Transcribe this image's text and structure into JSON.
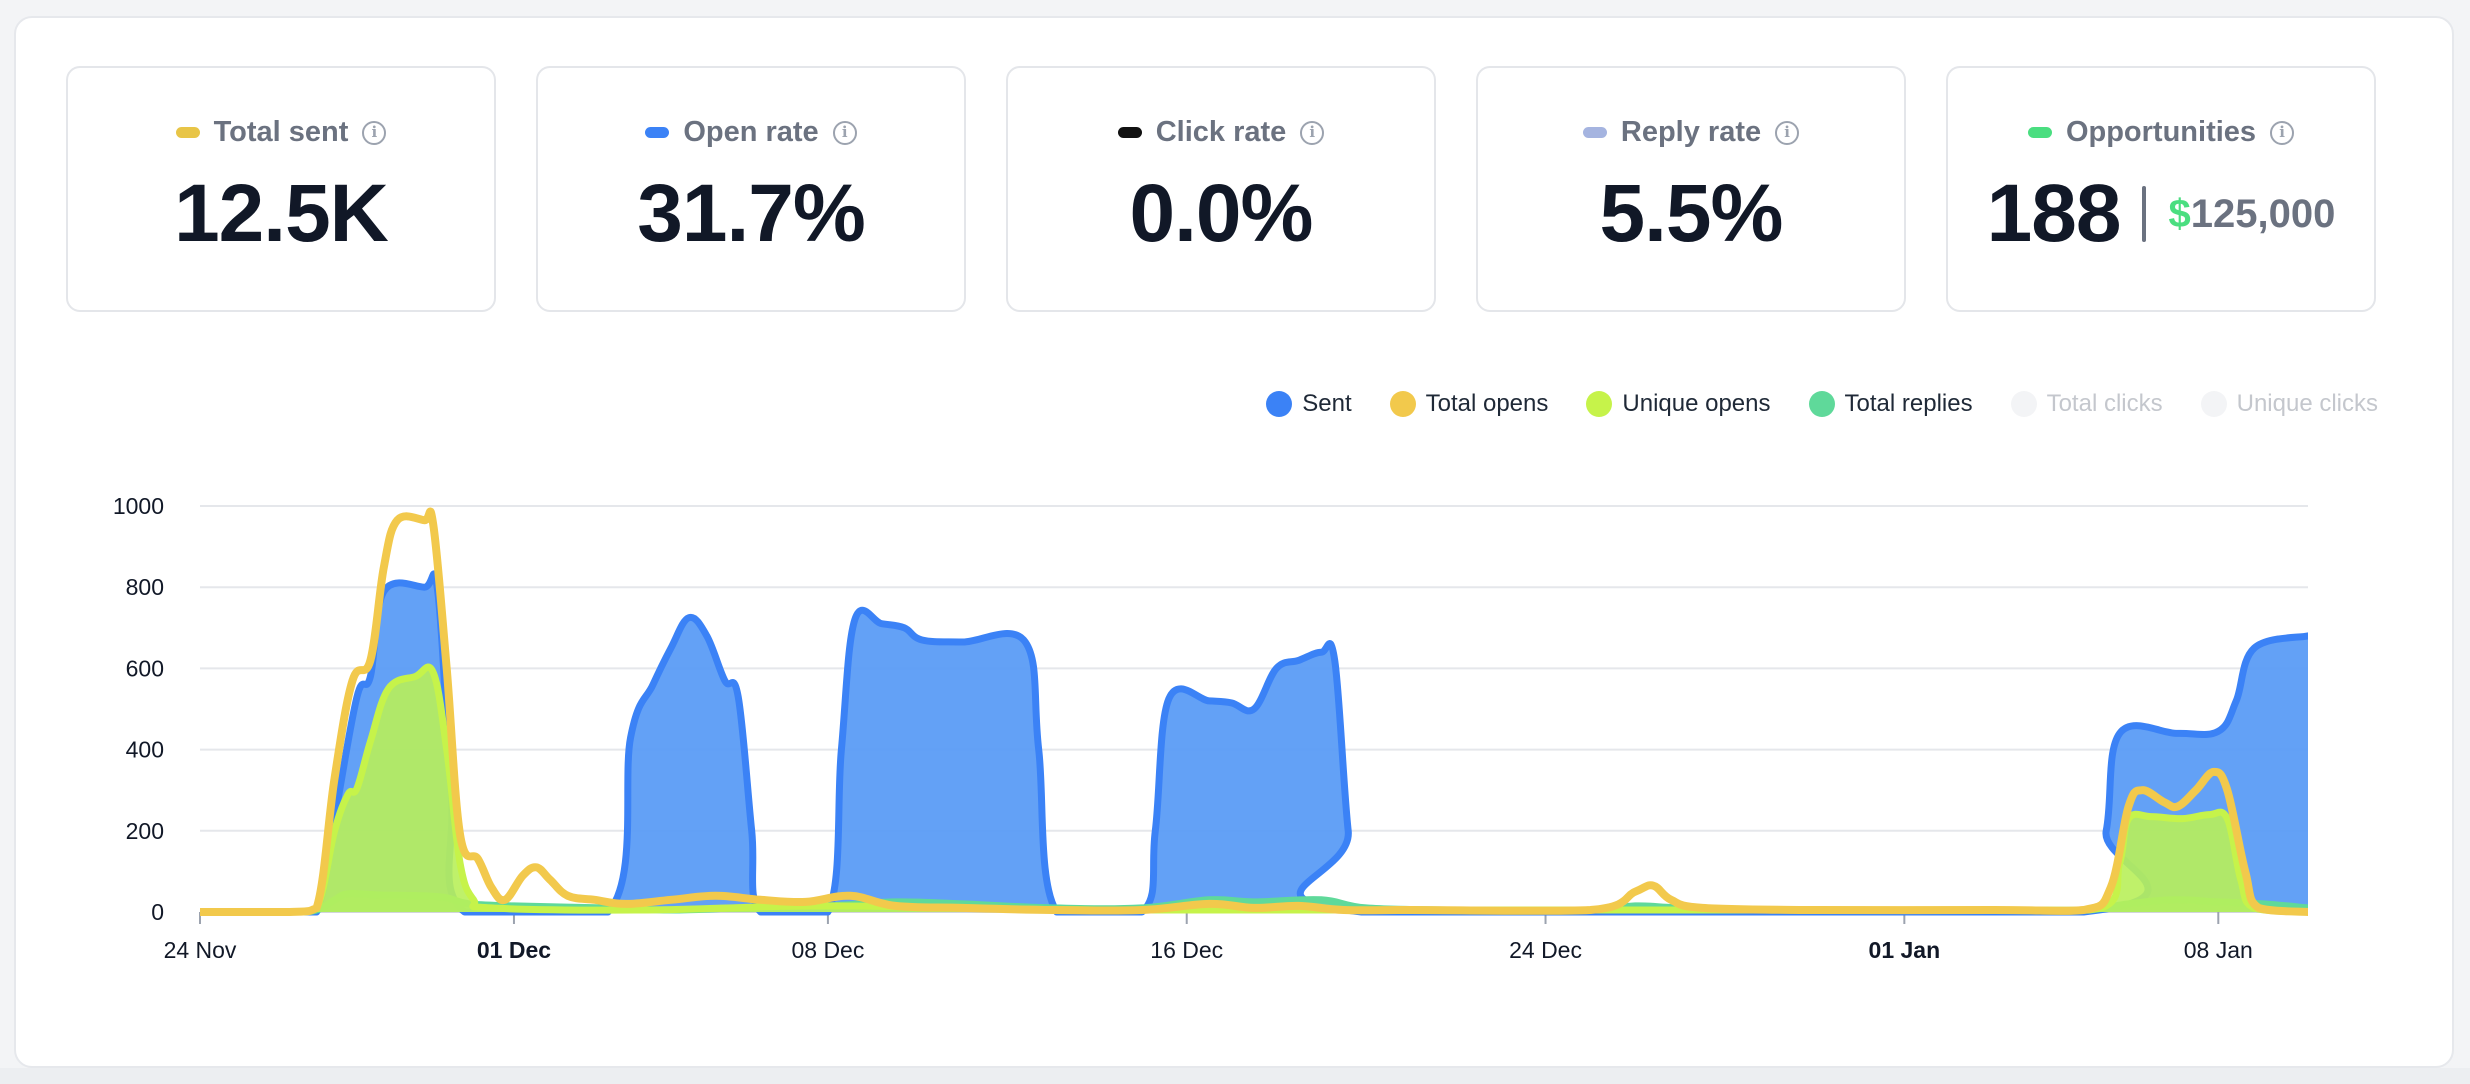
{
  "stats": [
    {
      "label": "Total sent",
      "value": "12.5K",
      "color": "#e8c547"
    },
    {
      "label": "Open rate",
      "value": "31.7%",
      "color": "#3b82f6"
    },
    {
      "label": "Click rate",
      "value": "0.0%",
      "color": "#111111"
    },
    {
      "label": "Reply rate",
      "value": "5.5%",
      "color": "#a5b4e0"
    },
    {
      "label": "Opportunities",
      "value": "188",
      "money_symbol": "$",
      "money_amount": "125,000",
      "color": "#4ade80"
    }
  ],
  "info_icon": {
    "name": "info-icon",
    "glyph": "i"
  },
  "legend": [
    {
      "label": "Sent",
      "color": "#3b82f6",
      "active": true
    },
    {
      "label": "Total opens",
      "color": "#f2c94c",
      "active": true
    },
    {
      "label": "Unique opens",
      "color": "#c6f34a",
      "active": true
    },
    {
      "label": "Total replies",
      "color": "#5fd99a",
      "active": true
    },
    {
      "label": "Total clicks",
      "color": "#f3f4f6",
      "active": false
    },
    {
      "label": "Unique clicks",
      "color": "#f3f4f6",
      "active": false
    }
  ],
  "chart_data": {
    "type": "area",
    "x_ticks": [
      {
        "day": 0,
        "label": "24 Nov",
        "bold": false
      },
      {
        "day": 7,
        "label": "01 Dec",
        "bold": true
      },
      {
        "day": 14,
        "label": "08 Dec",
        "bold": false
      },
      {
        "day": 22,
        "label": "16 Dec",
        "bold": false
      },
      {
        "day": 30,
        "label": "24 Dec",
        "bold": false
      },
      {
        "day": 38,
        "label": "01 Jan",
        "bold": true
      },
      {
        "day": 45,
        "label": "08 Jan",
        "bold": false
      }
    ],
    "x_range": [
      0,
      47
    ],
    "ylim": [
      0,
      1000
    ],
    "y_ticks": [
      0,
      200,
      400,
      600,
      800,
      1000
    ],
    "grid": true,
    "series": [
      {
        "name": "Sent",
        "color": "#3b82f6",
        "fill": "#5b9cf6",
        "points": [
          [
            0,
            0
          ],
          [
            2,
            0
          ],
          [
            2.6,
            0
          ],
          [
            3,
            230
          ],
          [
            3.5,
            530
          ],
          [
            3.8,
            580
          ],
          [
            4.1,
            790
          ],
          [
            5.0,
            800
          ],
          [
            5.3,
            790
          ],
          [
            5.6,
            300
          ],
          [
            5.9,
            0
          ],
          [
            9.1,
            0
          ],
          [
            9.6,
            430
          ],
          [
            10.1,
            560
          ],
          [
            10.5,
            650
          ],
          [
            10.9,
            725
          ],
          [
            11.3,
            680
          ],
          [
            11.7,
            570
          ],
          [
            12.0,
            530
          ],
          [
            12.3,
            200
          ],
          [
            12.5,
            0
          ],
          [
            14.0,
            0
          ],
          [
            14.3,
            400
          ],
          [
            14.6,
            720
          ],
          [
            15.2,
            710
          ],
          [
            15.7,
            700
          ],
          [
            16.1,
            670
          ],
          [
            17.0,
            665
          ],
          [
            18.4,
            665
          ],
          [
            18.7,
            400
          ],
          [
            19.1,
            0
          ],
          [
            21.0,
            0
          ],
          [
            21.3,
            200
          ],
          [
            21.6,
            525
          ],
          [
            22.5,
            520
          ],
          [
            23.0,
            515
          ],
          [
            23.5,
            500
          ],
          [
            24.0,
            600
          ],
          [
            24.5,
            620
          ],
          [
            25.0,
            640
          ],
          [
            25.3,
            620
          ],
          [
            25.6,
            200
          ],
          [
            25.9,
            0
          ],
          [
            42.0,
            0
          ],
          [
            42.5,
            200
          ],
          [
            42.8,
            440
          ],
          [
            44.1,
            440
          ],
          [
            45.0,
            445
          ],
          [
            45.4,
            520
          ],
          [
            45.8,
            650
          ],
          [
            47.0,
            680
          ]
        ]
      },
      {
        "name": "Total opens",
        "color": "#f2c94c",
        "fill": "none",
        "points": [
          [
            0,
            0
          ],
          [
            2,
            0
          ],
          [
            2.6,
            10
          ],
          [
            3.0,
            330
          ],
          [
            3.4,
            570
          ],
          [
            3.8,
            620
          ],
          [
            4.1,
            850
          ],
          [
            4.4,
            965
          ],
          [
            5.0,
            965
          ],
          [
            5.2,
            955
          ],
          [
            5.5,
            600
          ],
          [
            5.8,
            190
          ],
          [
            6.2,
            130
          ],
          [
            6.5,
            60
          ],
          [
            6.8,
            30
          ],
          [
            7.2,
            90
          ],
          [
            7.5,
            110
          ],
          [
            7.8,
            80
          ],
          [
            8.2,
            40
          ],
          [
            8.8,
            30
          ],
          [
            9.5,
            20
          ],
          [
            10.5,
            30
          ],
          [
            11.5,
            40
          ],
          [
            12.5,
            30
          ],
          [
            13.5,
            25
          ],
          [
            14.5,
            40
          ],
          [
            15.5,
            15
          ],
          [
            17,
            10
          ],
          [
            19,
            5
          ],
          [
            21,
            5
          ],
          [
            22.5,
            20
          ],
          [
            23.5,
            10
          ],
          [
            24.5,
            15
          ],
          [
            25.5,
            5
          ],
          [
            27,
            5
          ],
          [
            31,
            5
          ],
          [
            32,
            50
          ],
          [
            32.4,
            65
          ],
          [
            32.8,
            30
          ],
          [
            33.5,
            10
          ],
          [
            36,
            5
          ],
          [
            40,
            5
          ],
          [
            42,
            5
          ],
          [
            42.6,
            60
          ],
          [
            43.0,
            260
          ],
          [
            43.3,
            300
          ],
          [
            43.8,
            270
          ],
          [
            44.1,
            260
          ],
          [
            44.5,
            300
          ],
          [
            44.9,
            345
          ],
          [
            45.2,
            300
          ],
          [
            45.6,
            100
          ],
          [
            45.9,
            10
          ],
          [
            47,
            0
          ]
        ]
      },
      {
        "name": "Unique opens",
        "color": "#c6f34a",
        "fill": "#b8f05a",
        "points": [
          [
            0,
            0
          ],
          [
            2,
            0
          ],
          [
            2.6,
            10
          ],
          [
            3.0,
            200
          ],
          [
            3.3,
            290
          ],
          [
            3.5,
            305
          ],
          [
            3.8,
            420
          ],
          [
            4.2,
            550
          ],
          [
            4.8,
            580
          ],
          [
            5.2,
            590
          ],
          [
            5.5,
            400
          ],
          [
            5.8,
            120
          ],
          [
            6.1,
            30
          ],
          [
            6.5,
            10
          ],
          [
            10,
            5
          ],
          [
            14,
            15
          ],
          [
            20,
            5
          ],
          [
            30,
            5
          ],
          [
            40,
            5
          ],
          [
            42.4,
            10
          ],
          [
            42.8,
            120
          ],
          [
            43.0,
            230
          ],
          [
            43.5,
            235
          ],
          [
            44.2,
            230
          ],
          [
            44.8,
            240
          ],
          [
            45.2,
            230
          ],
          [
            45.5,
            80
          ],
          [
            45.8,
            10
          ],
          [
            47,
            0
          ]
        ]
      },
      {
        "name": "Total replies",
        "color": "#5fd99a",
        "fill": "#6fdc9f",
        "points": [
          [
            0,
            0
          ],
          [
            2,
            0
          ],
          [
            2.6,
            5
          ],
          [
            3.0,
            30
          ],
          [
            3.3,
            45
          ],
          [
            4.0,
            42
          ],
          [
            5.0,
            40
          ],
          [
            5.5,
            35
          ],
          [
            6.0,
            20
          ],
          [
            7,
            15
          ],
          [
            9,
            10
          ],
          [
            10.5,
            5
          ],
          [
            12,
            10
          ],
          [
            14,
            15
          ],
          [
            15.5,
            25
          ],
          [
            17,
            20
          ],
          [
            19,
            10
          ],
          [
            21,
            10
          ],
          [
            22.5,
            30
          ],
          [
            23.5,
            25
          ],
          [
            25,
            30
          ],
          [
            26,
            10
          ],
          [
            28,
            5
          ],
          [
            31,
            5
          ],
          [
            32,
            15
          ],
          [
            33,
            10
          ],
          [
            35,
            5
          ],
          [
            40,
            5
          ],
          [
            42,
            5
          ],
          [
            43,
            20
          ],
          [
            44,
            30
          ],
          [
            45,
            25
          ],
          [
            46,
            20
          ],
          [
            47,
            10
          ]
        ]
      }
    ]
  }
}
